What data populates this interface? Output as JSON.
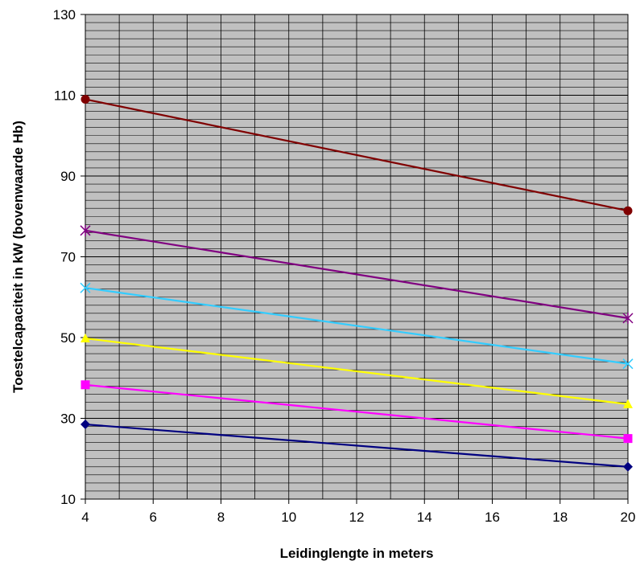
{
  "chart_data": {
    "type": "line",
    "title": "",
    "xlabel": "Leidinglengte in meters",
    "ylabel": "Toestelcapaciteit in kW (bovenwaarde Hb)",
    "xlim": [
      4,
      20
    ],
    "ylim": [
      10,
      130
    ],
    "x_ticks": [
      4,
      6,
      8,
      10,
      12,
      14,
      16,
      18,
      20
    ],
    "y_ticks": [
      10,
      30,
      50,
      70,
      90,
      110,
      130
    ],
    "grid": true,
    "legend": "none",
    "colors": {
      "plot_background": "#c0c0c0",
      "gridline": "#000000"
    },
    "series": [
      {
        "color": "#800000",
        "marker": "circle",
        "x": [
          4,
          20
        ],
        "y": [
          109,
          81.4
        ]
      },
      {
        "color": "#800080",
        "marker": "star",
        "x": [
          4,
          20
        ],
        "y": [
          76.5,
          54.8
        ]
      },
      {
        "color": "#33ccff",
        "marker": "x",
        "x": [
          4,
          20
        ],
        "y": [
          62.3,
          43.5
        ]
      },
      {
        "color": "#ffff00",
        "marker": "triangle",
        "x": [
          4,
          20
        ],
        "y": [
          49.8,
          33.5
        ]
      },
      {
        "color": "#ff00ff",
        "marker": "square",
        "x": [
          4,
          20
        ],
        "y": [
          38.3,
          25.0
        ]
      },
      {
        "color": "#000080",
        "marker": "diamond",
        "x": [
          4,
          20
        ],
        "y": [
          28.5,
          18.0
        ]
      }
    ]
  }
}
